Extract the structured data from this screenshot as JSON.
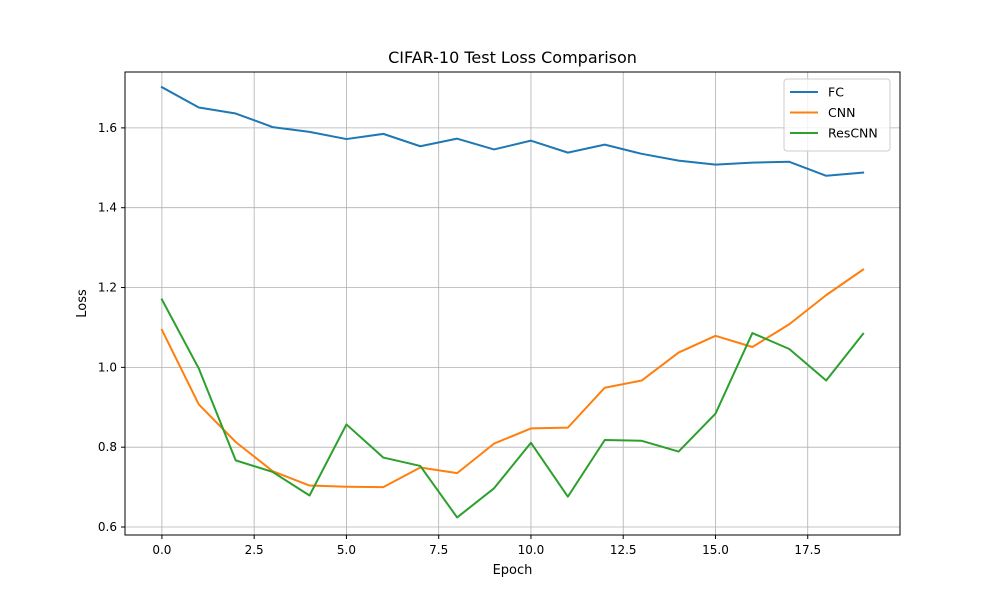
{
  "chart_data": {
    "type": "line",
    "title": "CIFAR-10 Test Loss Comparison",
    "xlabel": "Epoch",
    "ylabel": "Loss",
    "xlim": [
      -1,
      20
    ],
    "ylim": [
      0.58,
      1.74
    ],
    "xticks": [
      0.0,
      2.5,
      5.0,
      7.5,
      10.0,
      12.5,
      15.0,
      17.5
    ],
    "xtick_labels": [
      "0.0",
      "2.5",
      "5.0",
      "7.5",
      "10.0",
      "12.5",
      "15.0",
      "17.5"
    ],
    "yticks": [
      0.6,
      0.8,
      1.0,
      1.2,
      1.4,
      1.6
    ],
    "ytick_labels": [
      "0.6",
      "0.8",
      "1.0",
      "1.2",
      "1.4",
      "1.6"
    ],
    "grid": true,
    "legend_position": "top-right",
    "x": [
      0,
      1,
      2,
      3,
      4,
      5,
      6,
      7,
      8,
      9,
      10,
      11,
      12,
      13,
      14,
      15,
      16,
      17,
      18,
      19
    ],
    "series": [
      {
        "name": "FC",
        "color": "#1f77b4",
        "values": [
          1.702,
          1.651,
          1.636,
          1.602,
          1.59,
          1.572,
          1.585,
          1.554,
          1.573,
          1.546,
          1.568,
          1.538,
          1.558,
          1.535,
          1.518,
          1.508,
          1.513,
          1.515,
          1.48,
          1.488
        ]
      },
      {
        "name": "CNN",
        "color": "#ff7f0e",
        "values": [
          1.094,
          0.907,
          0.813,
          0.74,
          0.704,
          0.701,
          0.7,
          0.749,
          0.735,
          0.809,
          0.847,
          0.849,
          0.949,
          0.967,
          1.037,
          1.079,
          1.051,
          1.108,
          1.181,
          1.245
        ]
      },
      {
        "name": "ResCNN",
        "color": "#2ca02c",
        "values": [
          1.17,
          0.997,
          0.767,
          0.738,
          0.679,
          0.857,
          0.774,
          0.753,
          0.624,
          0.697,
          0.811,
          0.676,
          0.818,
          0.816,
          0.789,
          0.884,
          1.086,
          1.046,
          0.967,
          1.084
        ]
      }
    ]
  }
}
